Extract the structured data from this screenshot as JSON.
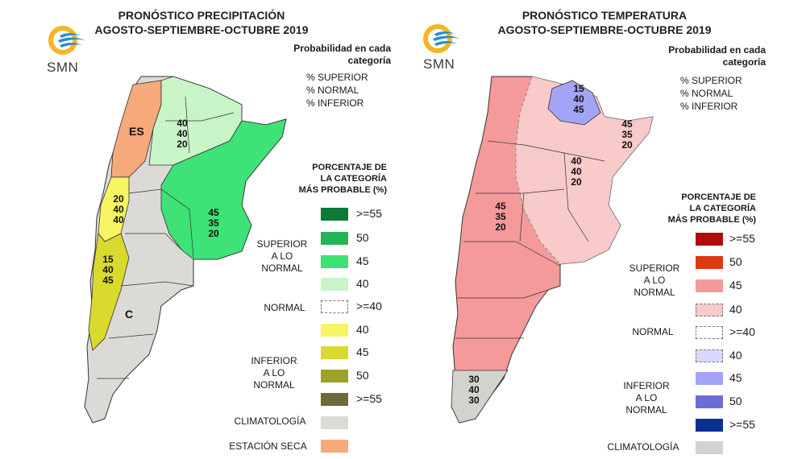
{
  "precip": {
    "title_line1": "PRONÓSTICO PRECIPITACIÓN",
    "title_line2": "AGOSTO-SEPTIEMBRE-OCTUBRE 2019",
    "logo_text": "SMN",
    "prob_title_line1": "Probabilidad en cada",
    "prob_title_line2": "categoría",
    "prob_lines": [
      "% SUPERIOR",
      "% NORMAL",
      "% INFERIOR"
    ],
    "legend_title_lines": [
      "PORCENTAJE DE",
      "LA CATEGORÍA",
      "MÁS PROBABLE (%)"
    ],
    "groups": {
      "superior": [
        "SUPERIOR",
        "A LO NORMAL"
      ],
      "normal": "NORMAL",
      "inferior": [
        "INFERIOR",
        "A LO NORMAL"
      ],
      "climatologia": "CLIMATOLOGÍA",
      "estacion_seca": "ESTACIÓN SECA"
    },
    "legend": [
      {
        "label": ">=55",
        "color": "#0b7a35"
      },
      {
        "label": "50",
        "color": "#23b457"
      },
      {
        "label": "45",
        "color": "#3ee277"
      },
      {
        "label": "40",
        "color": "#c8f4c8"
      },
      {
        "label": ">=40",
        "color": "#ffffff",
        "dashed": true
      },
      {
        "label": "40",
        "color": "#f7f562"
      },
      {
        "label": "45",
        "color": "#d9d92e"
      },
      {
        "label": "50",
        "color": "#9ca12c"
      },
      {
        "label": ">=55",
        "color": "#6b6b3a"
      },
      {
        "label": "",
        "color": "#dcdad7"
      },
      {
        "label": "",
        "color": "#f6a97a"
      }
    ],
    "map_labels": {
      "es": "ES",
      "c": "C",
      "box_north": [
        "40",
        "40",
        "20"
      ],
      "box_east": [
        "45",
        "35",
        "20"
      ],
      "box_west1": [
        "20",
        "40",
        "40"
      ],
      "box_west2": [
        "15",
        "40",
        "45"
      ]
    }
  },
  "temp": {
    "title_line1": "PRONÓSTICO TEMPERATURA",
    "title_line2": "AGOSTO-SEPTIEMBRE-OCTUBRE 2019",
    "logo_text": "SMN",
    "prob_title_line1": "Probabilidad en cada",
    "prob_title_line2": "categoría",
    "prob_lines": [
      "% SUPERIOR",
      "% NORMAL",
      "% INFERIOR"
    ],
    "legend_title_lines": [
      "PORCENTAJE DE",
      "LA CATEGORÍA",
      "MÁS PROBABLE (%)"
    ],
    "groups": {
      "superior": [
        "SUPERIOR",
        "A LO NORMAL"
      ],
      "normal": "NORMAL",
      "inferior": [
        "INFERIOR",
        "A LO NORMAL"
      ],
      "climatologia": "CLIMATOLOGÍA"
    },
    "legend": [
      {
        "label": ">=55",
        "color": "#b30b0b"
      },
      {
        "label": "50",
        "color": "#dd3a12"
      },
      {
        "label": "45",
        "color": "#f59a9a"
      },
      {
        "label": "40",
        "color": "#f9caca",
        "dashed": true
      },
      {
        "label": ">=40",
        "color": "#ffffff",
        "dashed": true
      },
      {
        "label": "40",
        "color": "#d9d9fb",
        "dashed": true
      },
      {
        "label": "45",
        "color": "#a4a4f6"
      },
      {
        "label": "50",
        "color": "#6d6dd8"
      },
      {
        "label": ">=55",
        "color": "#0b2f93"
      },
      {
        "label": "",
        "color": "#d4d2cf"
      }
    ],
    "map_labels": {
      "box_north": [
        "15",
        "40",
        "45"
      ],
      "box_ne": [
        "45",
        "35",
        "20"
      ],
      "box_center": [
        "40",
        "40",
        "20"
      ],
      "box_west": [
        "45",
        "35",
        "20"
      ],
      "box_south": [
        "30",
        "40",
        "30"
      ]
    }
  }
}
